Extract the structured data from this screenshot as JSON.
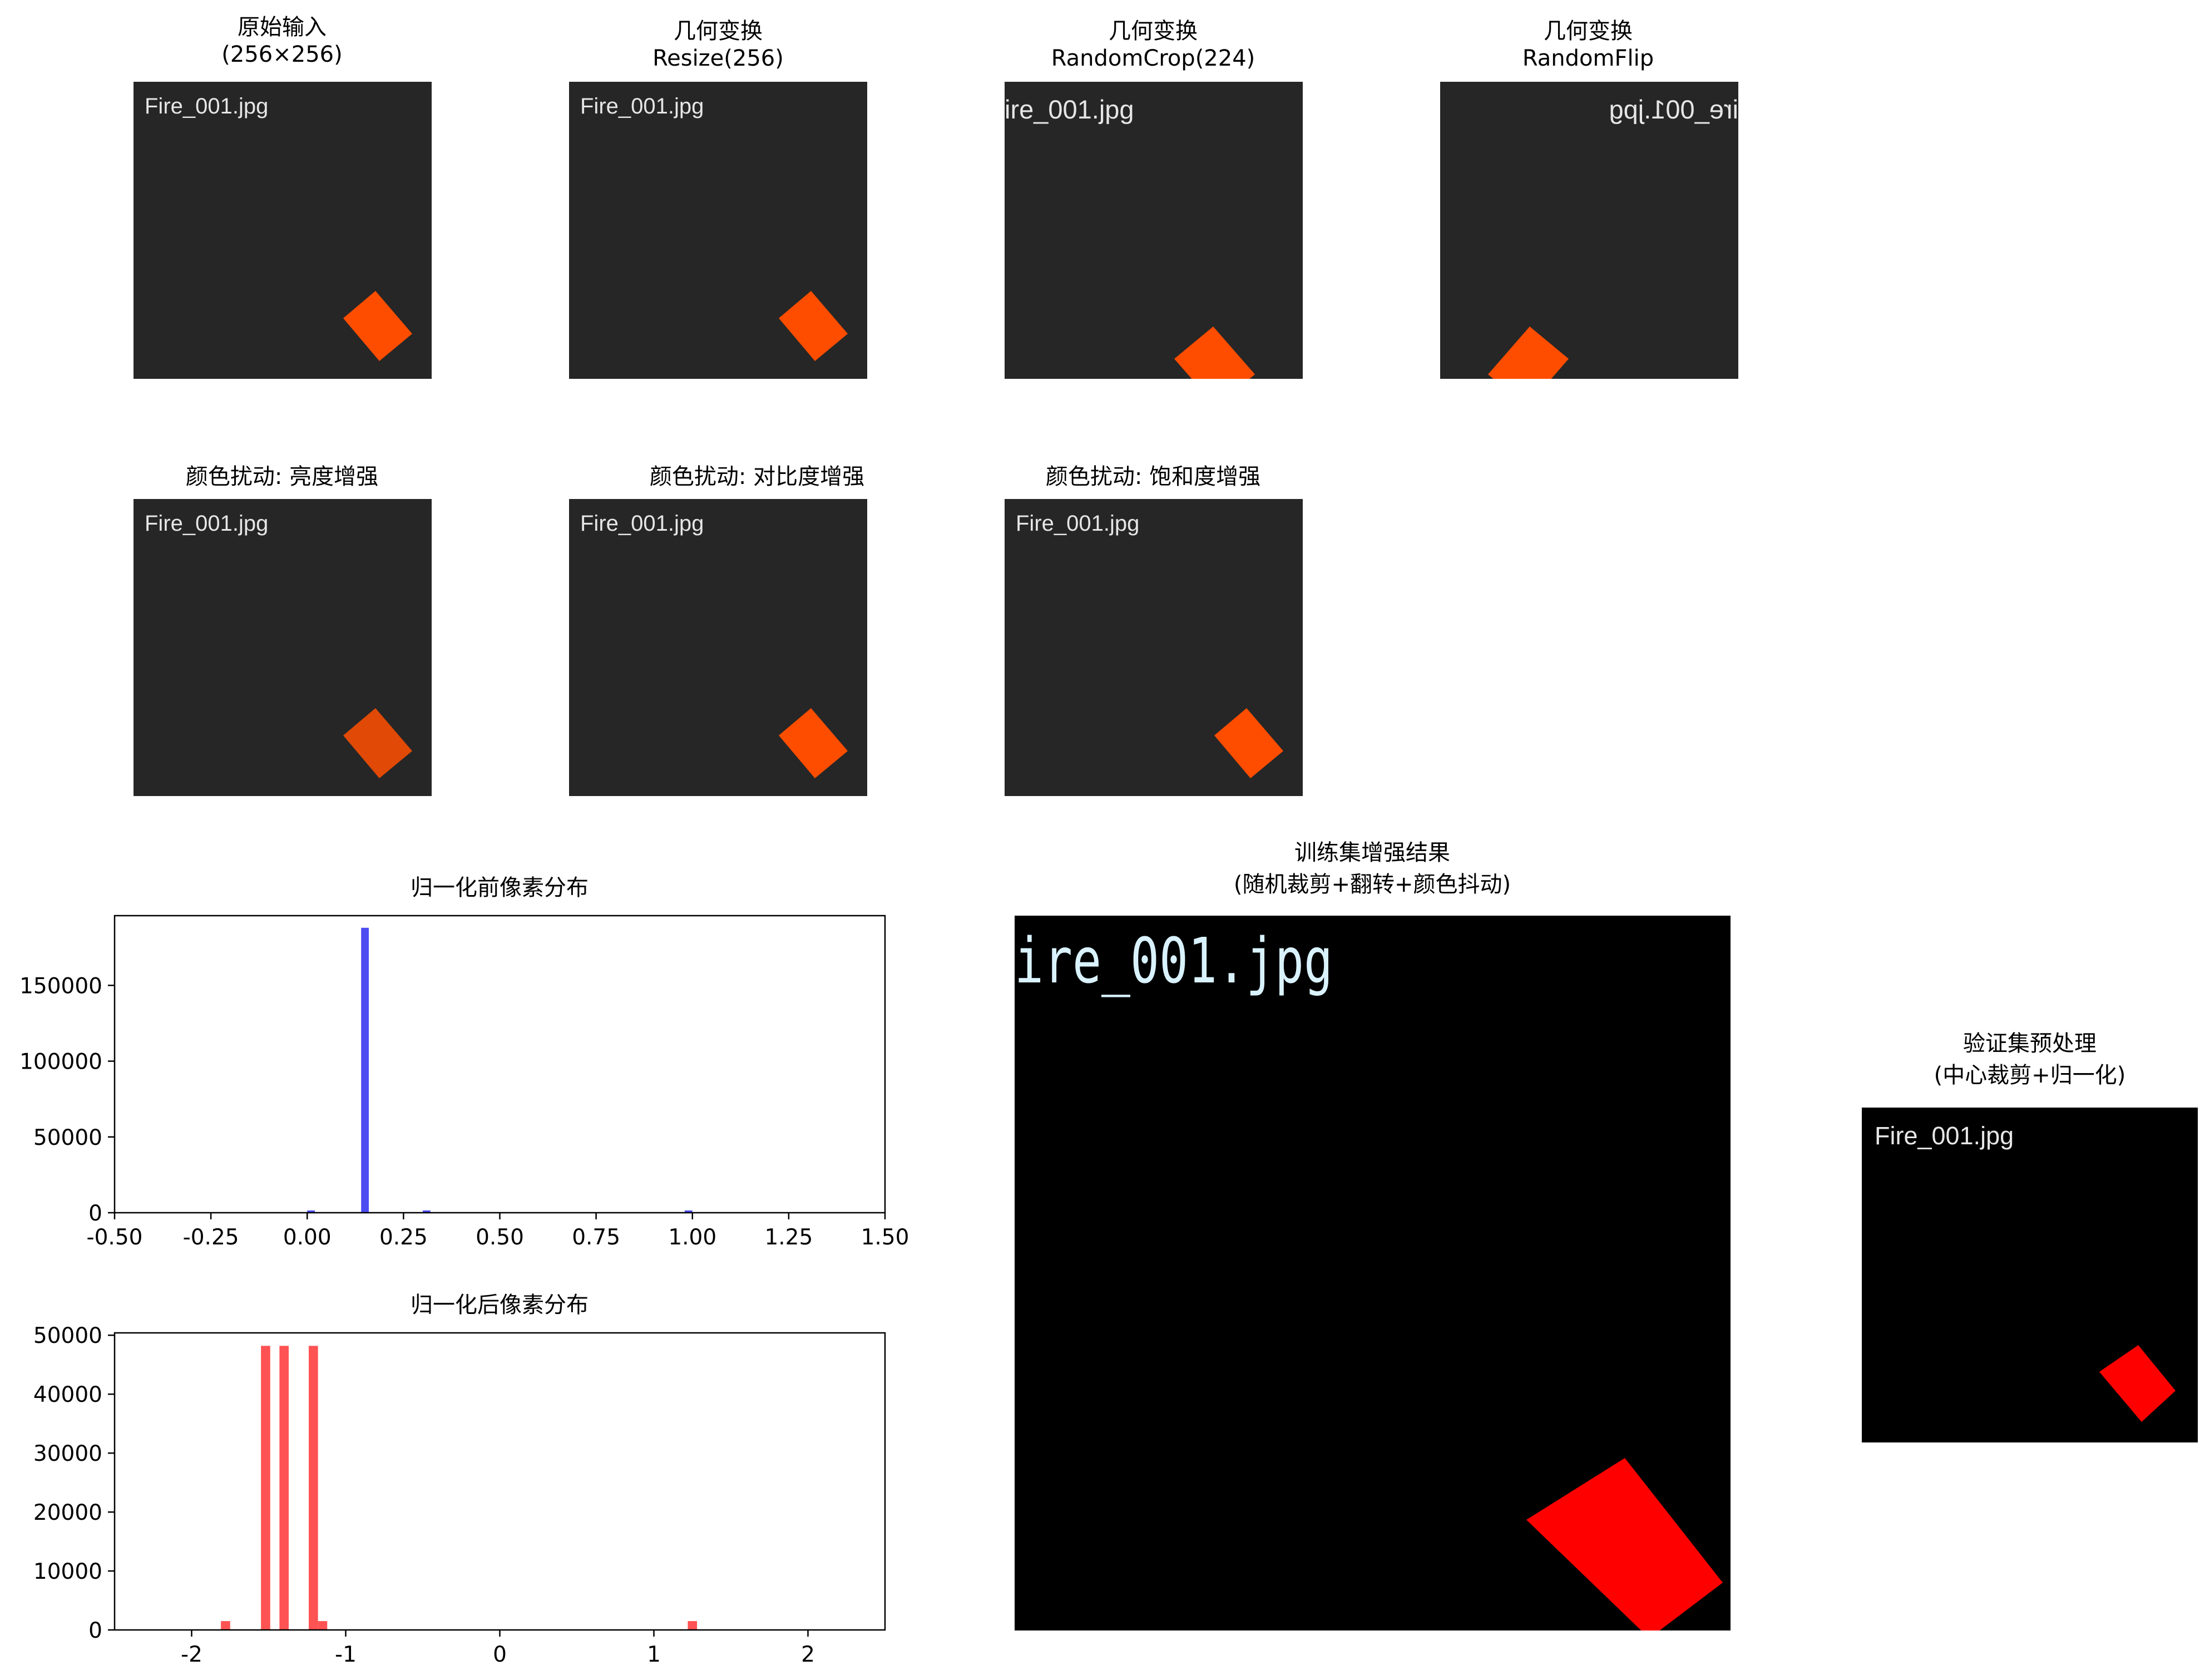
{
  "colors": {
    "thumb_bg": "#262626",
    "thumb_text": "#e6e6e6",
    "fire_orange": "#ff4d00",
    "fire_orange_bright": "#e04a06",
    "black_bg": "#000000",
    "red": "#ff0000",
    "hist_blue": "#4c4cf2",
    "hist_red": "#ff5353",
    "text_cyan": "#d9f2ff"
  },
  "panels": [
    {
      "id": "original",
      "title_lines": [
        "原始输入",
        "(256×256)"
      ],
      "filename": "Fire_001.jpg"
    },
    {
      "id": "resize",
      "title_lines": [
        "几何变换",
        "Resize(256)"
      ],
      "filename": "Fire_001.jpg"
    },
    {
      "id": "randomcrop",
      "title_lines": [
        "几何变换",
        "RandomCrop(224)"
      ],
      "filename": "ire_001.jpg"
    },
    {
      "id": "randomflip",
      "title_lines": [
        "几何变换",
        "RandomFlip"
      ],
      "filename": "ire_001.jpg"
    },
    {
      "id": "brightness",
      "title_lines": [
        "颜色扰动: 亮度增强"
      ],
      "filename": "Fire_001.jpg"
    },
    {
      "id": "contrast",
      "title_lines": [
        "颜色扰动: 对比度增强"
      ],
      "filename": "Fire_001.jpg"
    },
    {
      "id": "saturation",
      "title_lines": [
        "颜色扰动: 饱和度增强"
      ],
      "filename": "Fire_001.jpg"
    },
    {
      "id": "train_result",
      "title_lines": [
        "训练集增强结果",
        "(随机裁剪+翻转+颜色抖动)"
      ],
      "filename": "ire_001.jpg"
    },
    {
      "id": "val_result",
      "title_lines": [
        "验证集预处理",
        "(中心裁剪+归一化)"
      ],
      "filename": "Fire_001.jpg"
    }
  ],
  "chart_data": [
    {
      "type": "bar",
      "title": "归一化前像素分布",
      "xlabel": "",
      "ylabel": "",
      "xlim": [
        -0.5,
        1.5
      ],
      "ylim": [
        0,
        196000
      ],
      "xticks": [
        -0.5,
        -0.25,
        0.0,
        0.25,
        0.5,
        0.75,
        1.0,
        1.25,
        1.5
      ],
      "xtick_labels": [
        "-0.50",
        "-0.25",
        "0.00",
        "0.25",
        "0.50",
        "0.75",
        "1.00",
        "1.25",
        "1.50"
      ],
      "yticks": [
        0,
        50000,
        100000,
        150000
      ],
      "ytick_labels": [
        "0",
        "50000",
        "100000",
        "150000"
      ],
      "bar_width": 0.02,
      "bars": [
        {
          "x": 0.01,
          "value": 1500
        },
        {
          "x": 0.15,
          "value": 188000
        },
        {
          "x": 0.31,
          "value": 1500
        },
        {
          "x": 0.99,
          "value": 1500
        }
      ],
      "color": "#4c4cf2"
    },
    {
      "type": "bar",
      "title": "归一化后像素分布",
      "xlabel": "",
      "ylabel": "",
      "xlim": [
        -2.5,
        2.5
      ],
      "ylim": [
        0,
        50400
      ],
      "xticks": [
        -2,
        -1,
        0,
        1,
        2
      ],
      "xtick_labels": [
        "-2",
        "-1",
        "0",
        "1",
        "2"
      ],
      "yticks": [
        0,
        10000,
        20000,
        30000,
        40000,
        50000
      ],
      "ytick_labels": [
        "0",
        "10000",
        "20000",
        "30000",
        "40000",
        "50000"
      ],
      "bar_width": 0.06,
      "bars": [
        {
          "x": -1.78,
          "value": 1500
        },
        {
          "x": -1.52,
          "value": 48200
        },
        {
          "x": -1.4,
          "value": 48200
        },
        {
          "x": -1.21,
          "value": 48200
        },
        {
          "x": -1.15,
          "value": 1500
        },
        {
          "x": 1.25,
          "value": 1500
        }
      ],
      "color": "#ff5353"
    }
  ]
}
